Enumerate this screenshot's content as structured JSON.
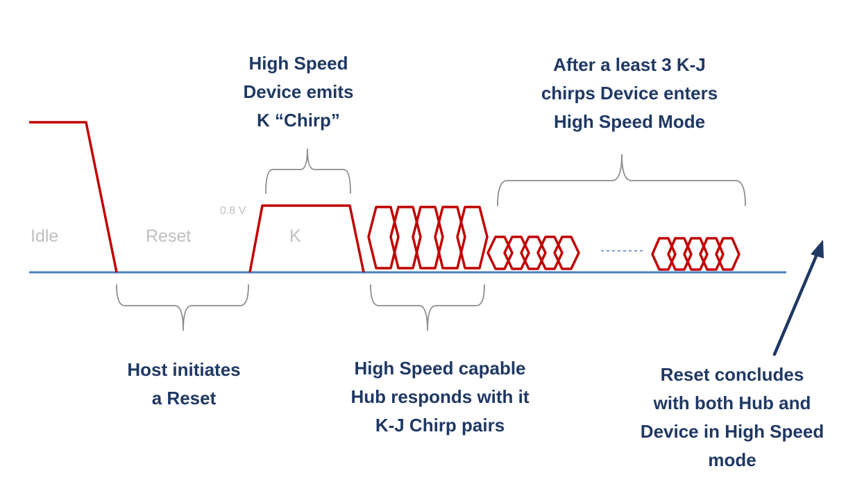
{
  "annotations": {
    "chirp_k": [
      "High Speed",
      "Device emits",
      "K “Chirp”"
    ],
    "hs_mode": [
      "After a least 3 K-J",
      "chirps Device enters",
      "High Speed Mode"
    ],
    "host_reset": [
      "Host initiates",
      "a Reset"
    ],
    "hub_chirps": [
      "High Speed capable",
      "Hub responds with it",
      "K-J Chirp pairs"
    ],
    "conclusion": [
      "Reset concludes",
      "with both Hub and",
      "Device in High Speed",
      "mode"
    ]
  },
  "regions": {
    "idle": "Idle",
    "reset": "Reset",
    "k": "K"
  },
  "voltage_label": "0.8 V",
  "colors": {
    "signal": "#c00000",
    "baseline": "#4a7fc1",
    "brace": "#8c8c8c",
    "annotation": "#1f3864",
    "region_label": "#bfbfbf"
  }
}
